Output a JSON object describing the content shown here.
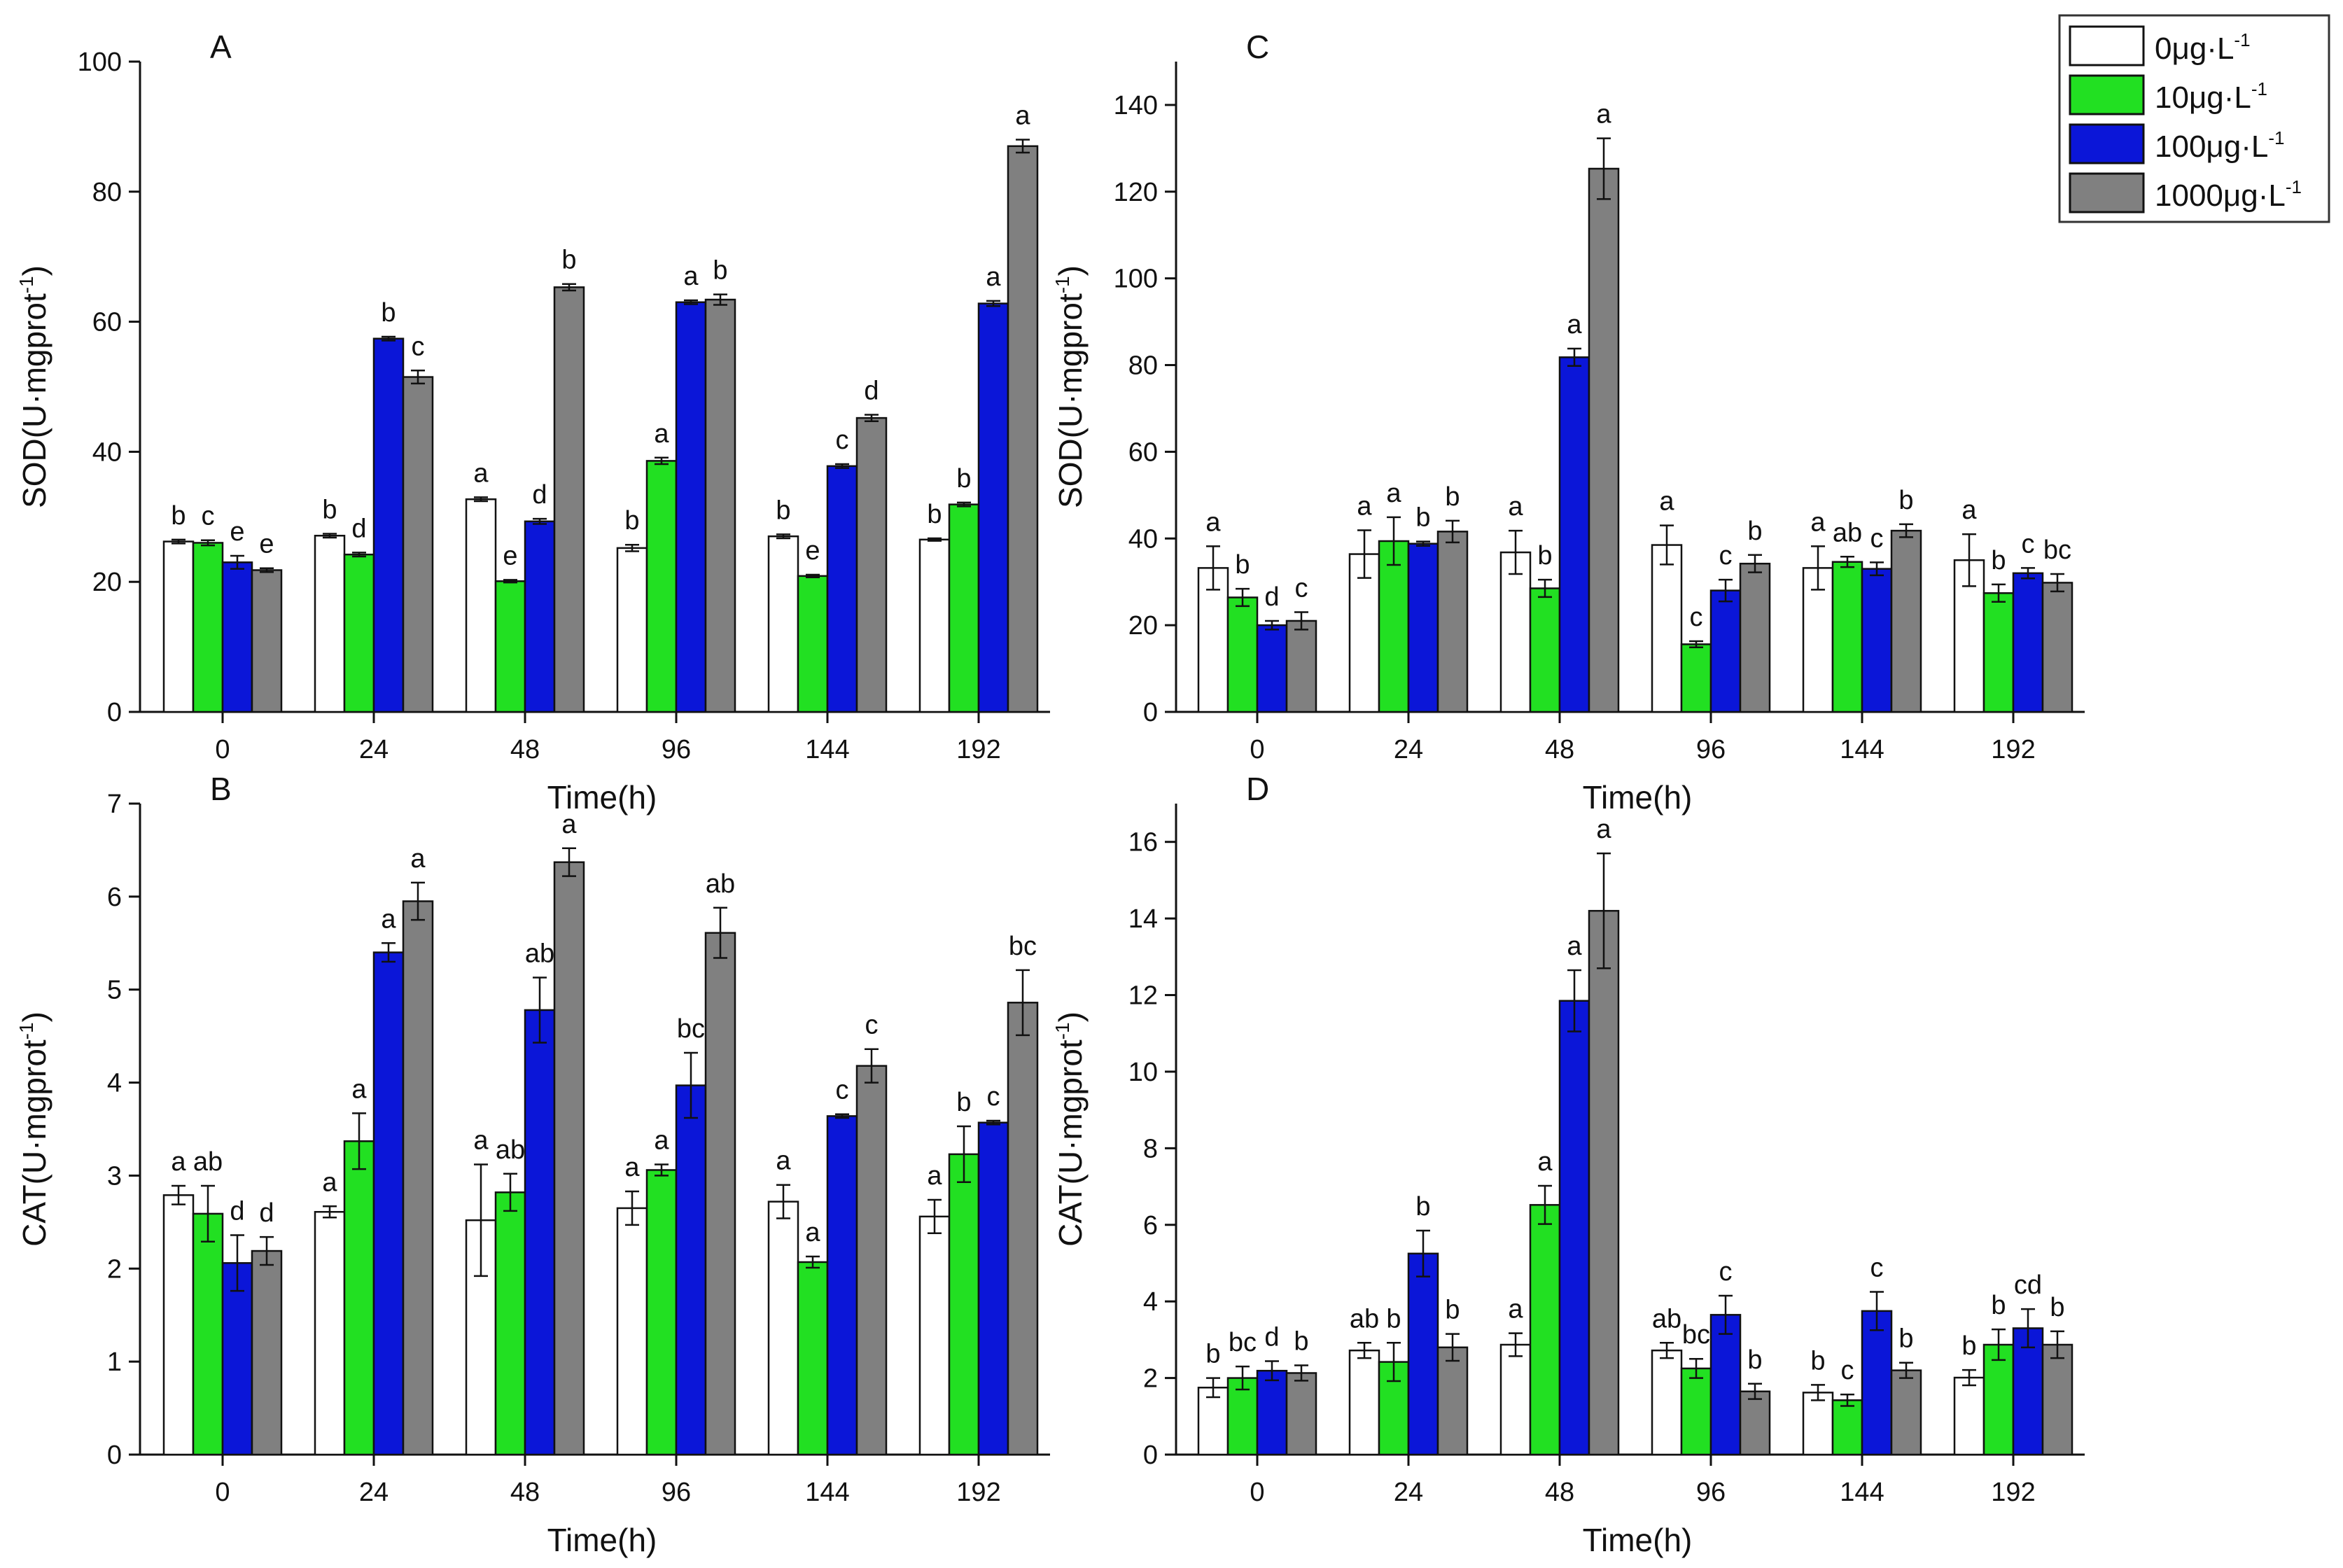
{
  "legend": {
    "entries": [
      {
        "label": "0μg·L",
        "sup": "-1",
        "color": "#ffffff"
      },
      {
        "label": "10μg·L",
        "sup": "-1",
        "color": "#22e022"
      },
      {
        "label": "100μg·L",
        "sup": "-1",
        "color": "#0b16d8"
      },
      {
        "label": "1000μg·L",
        "sup": "-1",
        "color": "#808080"
      }
    ]
  },
  "chart_data": [
    {
      "id": "A",
      "type": "bar",
      "title": "A",
      "xlabel": "Time(h)",
      "ylabel": "SOD(U·mgprot",
      "ylabel_sup": "-1",
      "ylabel_end": ")",
      "categories": [
        "0",
        "24",
        "48",
        "96",
        "144",
        "192"
      ],
      "ylim": [
        0,
        100
      ],
      "yticks": [
        0,
        20,
        40,
        60,
        80,
        100
      ],
      "series": [
        {
          "name": "0μg·L-1",
          "values": [
            26.2,
            27.1,
            32.7,
            25.2,
            27.0,
            26.5
          ],
          "errors": [
            0.3,
            0.3,
            0.3,
            0.5,
            0.3,
            0.2
          ],
          "labels": [
            "b",
            "b",
            "a",
            "b",
            "b",
            "b"
          ]
        },
        {
          "name": "10μg·L-1",
          "values": [
            26.0,
            24.2,
            20.1,
            38.6,
            20.9,
            31.9
          ],
          "errors": [
            0.4,
            0.3,
            0.2,
            0.5,
            0.2,
            0.3
          ],
          "labels": [
            "c",
            "d",
            "e",
            "a",
            "e",
            "b"
          ]
        },
        {
          "name": "100μg·L-1",
          "values": [
            23.0,
            57.4,
            29.3,
            63.0,
            37.8,
            62.8
          ],
          "errors": [
            1.0,
            0.3,
            0.4,
            0.3,
            0.3,
            0.4
          ],
          "labels": [
            "e",
            "b",
            "d",
            "a",
            "c",
            "a"
          ]
        },
        {
          "name": "1000μg·L-1",
          "values": [
            21.8,
            51.5,
            65.3,
            63.4,
            45.2,
            87.0
          ],
          "errors": [
            0.3,
            1.0,
            0.5,
            0.8,
            0.5,
            1.0
          ],
          "labels": [
            "e",
            "c",
            "b",
            "b",
            "d",
            "a"
          ]
        }
      ]
    },
    {
      "id": "C",
      "type": "bar",
      "title": "C",
      "xlabel": "Time(h)",
      "ylabel": "SOD(U·mgprot",
      "ylabel_sup": "-1",
      "ylabel_end": ")",
      "categories": [
        "0",
        "24",
        "48",
        "96",
        "144",
        "192"
      ],
      "ylim": [
        0,
        150
      ],
      "yticks": [
        0,
        20,
        40,
        60,
        80,
        100,
        120,
        140
      ],
      "series": [
        {
          "name": "0μg·L-1",
          "values": [
            33.2,
            36.4,
            36.8,
            38.5,
            33.2,
            35.0
          ],
          "errors": [
            5.0,
            5.5,
            5.0,
            4.5,
            5.0,
            6.0
          ],
          "labels": [
            "a",
            "a",
            "a",
            "a",
            "a",
            "a"
          ]
        },
        {
          "name": "10μg·L-1",
          "values": [
            26.4,
            39.4,
            28.5,
            15.6,
            34.6,
            27.4
          ],
          "errors": [
            2.0,
            5.5,
            2.0,
            0.7,
            1.2,
            2.0
          ],
          "labels": [
            "b",
            "a",
            "b",
            "c",
            "ab",
            "b"
          ]
        },
        {
          "name": "100μg·L-1",
          "values": [
            20.0,
            38.8,
            81.8,
            28.0,
            33.0,
            32.0
          ],
          "errors": [
            1.0,
            0.5,
            2.0,
            2.5,
            1.5,
            1.2
          ],
          "labels": [
            "d",
            "b",
            "a",
            "c",
            "c",
            "c"
          ]
        },
        {
          "name": "1000μg·L-1",
          "values": [
            21.0,
            41.6,
            125.3,
            34.2,
            41.8,
            29.8
          ],
          "errors": [
            2.0,
            2.5,
            7.0,
            2.0,
            1.5,
            2.0
          ],
          "labels": [
            "c",
            "b",
            "a",
            "b",
            "b",
            "bc"
          ]
        }
      ]
    },
    {
      "id": "B",
      "type": "bar",
      "title": "B",
      "xlabel": "Time(h)",
      "ylabel": "CAT(U·mgprot",
      "ylabel_sup": "-1",
      "ylabel_end": ")",
      "categories": [
        "0",
        "24",
        "48",
        "96",
        "144",
        "192"
      ],
      "ylim": [
        0,
        7
      ],
      "yticks": [
        0,
        1,
        2,
        3,
        4,
        5,
        6,
        7
      ],
      "series": [
        {
          "name": "0μg·L-1",
          "values": [
            2.79,
            2.61,
            2.52,
            2.65,
            2.72,
            2.56
          ],
          "errors": [
            0.1,
            0.06,
            0.6,
            0.18,
            0.18,
            0.18
          ],
          "labels": [
            "a",
            "a",
            "a",
            "a",
            "a",
            "a"
          ]
        },
        {
          "name": "10μg·L-1",
          "values": [
            2.59,
            3.37,
            2.82,
            3.06,
            2.07,
            3.23
          ],
          "errors": [
            0.3,
            0.3,
            0.2,
            0.06,
            0.06,
            0.3
          ],
          "labels": [
            "ab",
            "a",
            "ab",
            "a",
            "a",
            "b"
          ]
        },
        {
          "name": "100μg·L-1",
          "values": [
            2.06,
            5.4,
            4.78,
            3.97,
            3.64,
            3.57
          ],
          "errors": [
            0.3,
            0.1,
            0.35,
            0.35,
            0.02,
            0.02
          ],
          "labels": [
            "d",
            "a",
            "ab",
            "bc",
            "c",
            "c"
          ]
        },
        {
          "name": "1000μg·L-1",
          "values": [
            2.19,
            5.95,
            6.37,
            5.61,
            4.18,
            4.86
          ],
          "errors": [
            0.15,
            0.2,
            0.15,
            0.27,
            0.18,
            0.35
          ],
          "labels": [
            "d",
            "a",
            "a",
            "ab",
            "c",
            "bc"
          ]
        }
      ]
    },
    {
      "id": "D",
      "type": "bar",
      "title": "D",
      "xlabel": "Time(h)",
      "ylabel": "CAT(U·mgprot",
      "ylabel_sup": "-1",
      "ylabel_end": ")",
      "categories": [
        "0",
        "24",
        "48",
        "96",
        "144",
        "192"
      ],
      "ylim": [
        0,
        17
      ],
      "yticks": [
        0,
        2,
        4,
        6,
        8,
        10,
        12,
        14,
        16
      ],
      "series": [
        {
          "name": "0μg·L-1",
          "values": [
            1.75,
            2.72,
            2.87,
            2.72,
            1.62,
            2.01
          ],
          "errors": [
            0.25,
            0.2,
            0.3,
            0.2,
            0.2,
            0.2
          ],
          "labels": [
            "b",
            "ab",
            "a",
            "ab",
            "b",
            "b"
          ]
        },
        {
          "name": "10μg·L-1",
          "values": [
            2.0,
            2.42,
            6.52,
            2.25,
            1.42,
            2.87
          ],
          "errors": [
            0.3,
            0.5,
            0.5,
            0.25,
            0.15,
            0.4
          ],
          "labels": [
            "bc",
            "b",
            "a",
            "bc",
            "c",
            "b"
          ]
        },
        {
          "name": "100μg·L-1",
          "values": [
            2.19,
            5.25,
            11.85,
            3.65,
            3.75,
            3.3
          ],
          "errors": [
            0.25,
            0.6,
            0.8,
            0.5,
            0.5,
            0.5
          ],
          "labels": [
            "d",
            "b",
            "a",
            "c",
            "c",
            "cd"
          ]
        },
        {
          "name": "1000μg·L-1",
          "values": [
            2.13,
            2.8,
            14.2,
            1.65,
            2.2,
            2.87
          ],
          "errors": [
            0.2,
            0.35,
            1.5,
            0.2,
            0.2,
            0.35
          ],
          "labels": [
            "b",
            "b",
            "a",
            "b",
            "b",
            "b"
          ]
        }
      ]
    }
  ]
}
